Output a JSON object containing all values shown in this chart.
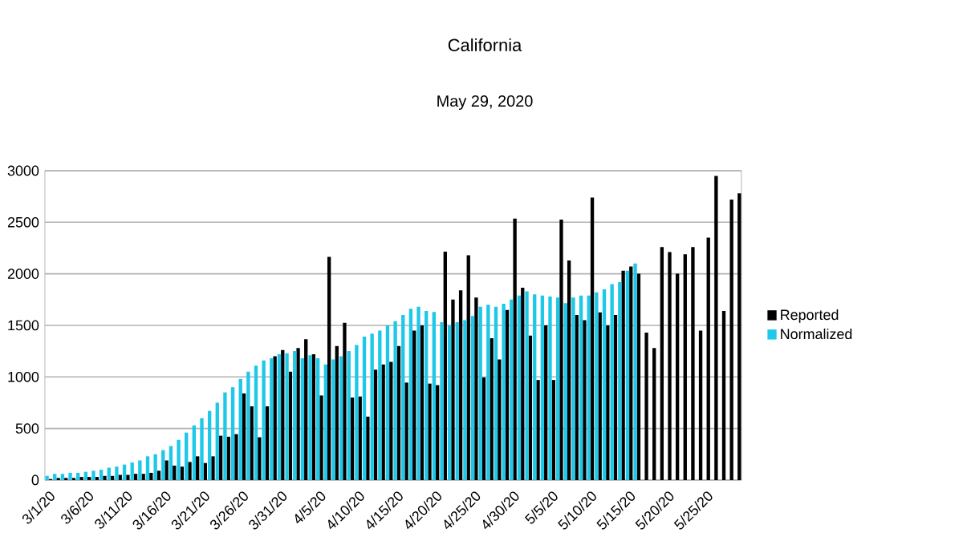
{
  "chart_data": {
    "type": "bar",
    "title": "California",
    "subtitle": "May 29, 2020",
    "categories": [
      "3/1/20",
      null,
      null,
      null,
      null,
      "3/6/20",
      null,
      null,
      null,
      null,
      "3/11/20",
      null,
      null,
      null,
      null,
      "3/16/20",
      null,
      null,
      null,
      null,
      "3/21/20",
      null,
      null,
      null,
      null,
      "3/26/20",
      null,
      null,
      null,
      null,
      "3/31/20",
      null,
      null,
      null,
      null,
      "4/5/20",
      null,
      null,
      null,
      null,
      "4/10/20",
      null,
      null,
      null,
      null,
      "4/15/20",
      null,
      null,
      null,
      null,
      "4/20/20",
      null,
      null,
      null,
      null,
      "4/25/20",
      null,
      null,
      null,
      null,
      "4/30/20",
      null,
      null,
      null,
      null,
      "5/5/20",
      null,
      null,
      null,
      null,
      "5/10/20",
      null,
      null,
      null,
      null,
      "5/15/20",
      null,
      null,
      null,
      null,
      "5/20/20",
      null,
      null,
      null,
      null,
      "5/25/20",
      null,
      null,
      null,
      null
    ],
    "series": [
      {
        "name": "Reported",
        "color": "#000000",
        "values": [
          10,
          20,
          20,
          20,
          30,
          30,
          30,
          40,
          40,
          50,
          50,
          60,
          60,
          70,
          90,
          190,
          140,
          130,
          175,
          230,
          165,
          230,
          430,
          420,
          445,
          840,
          715,
          415,
          715,
          1200,
          1260,
          1050,
          1280,
          1365,
          1220,
          820,
          2165,
          1300,
          1525,
          800,
          810,
          615,
          1070,
          1120,
          1145,
          1300,
          945,
          1450,
          1500,
          935,
          920,
          2215,
          1750,
          1840,
          2180,
          1770,
          995,
          1375,
          1170,
          1650,
          2535,
          1865,
          1400,
          970,
          1500,
          970,
          2525,
          2130,
          1600,
          1550,
          2740,
          1625,
          1500,
          1600,
          2030,
          2070,
          2000,
          1430,
          1280,
          2260,
          2210,
          2000,
          2190,
          2260,
          1450,
          2350,
          2950,
          1640,
          2720,
          2780
        ]
      },
      {
        "name": "Normalized",
        "color": "#1ec8e8",
        "values": [
          40,
          60,
          60,
          70,
          70,
          80,
          90,
          100,
          120,
          130,
          150,
          170,
          190,
          230,
          250,
          290,
          330,
          390,
          460,
          530,
          600,
          670,
          750,
          850,
          900,
          980,
          1050,
          1110,
          1160,
          1180,
          1220,
          1230,
          1250,
          1180,
          1210,
          1180,
          1120,
          1170,
          1200,
          1250,
          1310,
          1390,
          1420,
          1450,
          1500,
          1540,
          1600,
          1660,
          1680,
          1640,
          1630,
          1530,
          1500,
          1530,
          1550,
          1590,
          1680,
          1700,
          1680,
          1710,
          1750,
          1790,
          1830,
          1800,
          1790,
          1780,
          1770,
          1715,
          1770,
          1790,
          1790,
          1820,
          1850,
          1900,
          1920,
          2030,
          2100,
          null,
          null,
          null,
          null,
          null,
          null,
          null,
          null,
          null,
          null,
          null,
          null,
          null
        ]
      }
    ],
    "ylim": [
      0,
      3000
    ],
    "yticks": [
      0,
      500,
      1000,
      1500,
      2000,
      2500,
      3000
    ],
    "grid": "y",
    "legend": "right"
  }
}
